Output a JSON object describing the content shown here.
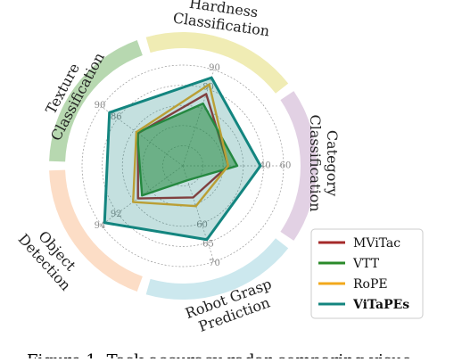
{
  "chart_data": {
    "type": "radar",
    "axes": [
      {
        "label_lines": [
          "Hardness",
          "Classification"
        ],
        "band_color": "#f0ecb4"
      },
      {
        "label_lines": [
          "Category",
          "Classification"
        ],
        "band_color": "#e2d1e4"
      },
      {
        "label_lines": [
          "Robot Grasp",
          "Prediction"
        ],
        "band_color": "#cce8ee"
      },
      {
        "label_lines": [
          "Object",
          "Detection"
        ],
        "band_color": "#fcddc6"
      },
      {
        "label_lines": [
          "Texture",
          "Classification"
        ],
        "band_color": "#b7d8b0"
      }
    ],
    "tick_labels": [
      [
        "90",
        "80"
      ],
      [
        "60",
        "40"
      ],
      [
        "70",
        "65",
        "60"
      ],
      [
        "94",
        "92"
      ],
      [
        "90",
        "86"
      ]
    ],
    "series": [
      {
        "name": "MViTac",
        "color": "#a52a2a",
        "fill": false,
        "r": [
          0.75,
          0.45,
          0.33,
          0.55,
          0.55
        ]
      },
      {
        "name": "VTT",
        "color": "#2a8a2a",
        "fill": true,
        "r": [
          0.65,
          0.54,
          0.15,
          0.5,
          0.56
        ]
      },
      {
        "name": "RoPE",
        "color": "#f2a81c",
        "fill": false,
        "r": [
          0.85,
          0.45,
          0.42,
          0.61,
          0.57
        ]
      },
      {
        "name": "ViTaPEs",
        "color": "#13857f",
        "fill": true,
        "bold": true,
        "r": [
          0.92,
          0.77,
          0.77,
          0.96,
          0.9
        ]
      }
    ],
    "grid": true,
    "legend_position": "bottom-right"
  },
  "caption": "Figure 1: Task-accuracy radar comparing visuo"
}
